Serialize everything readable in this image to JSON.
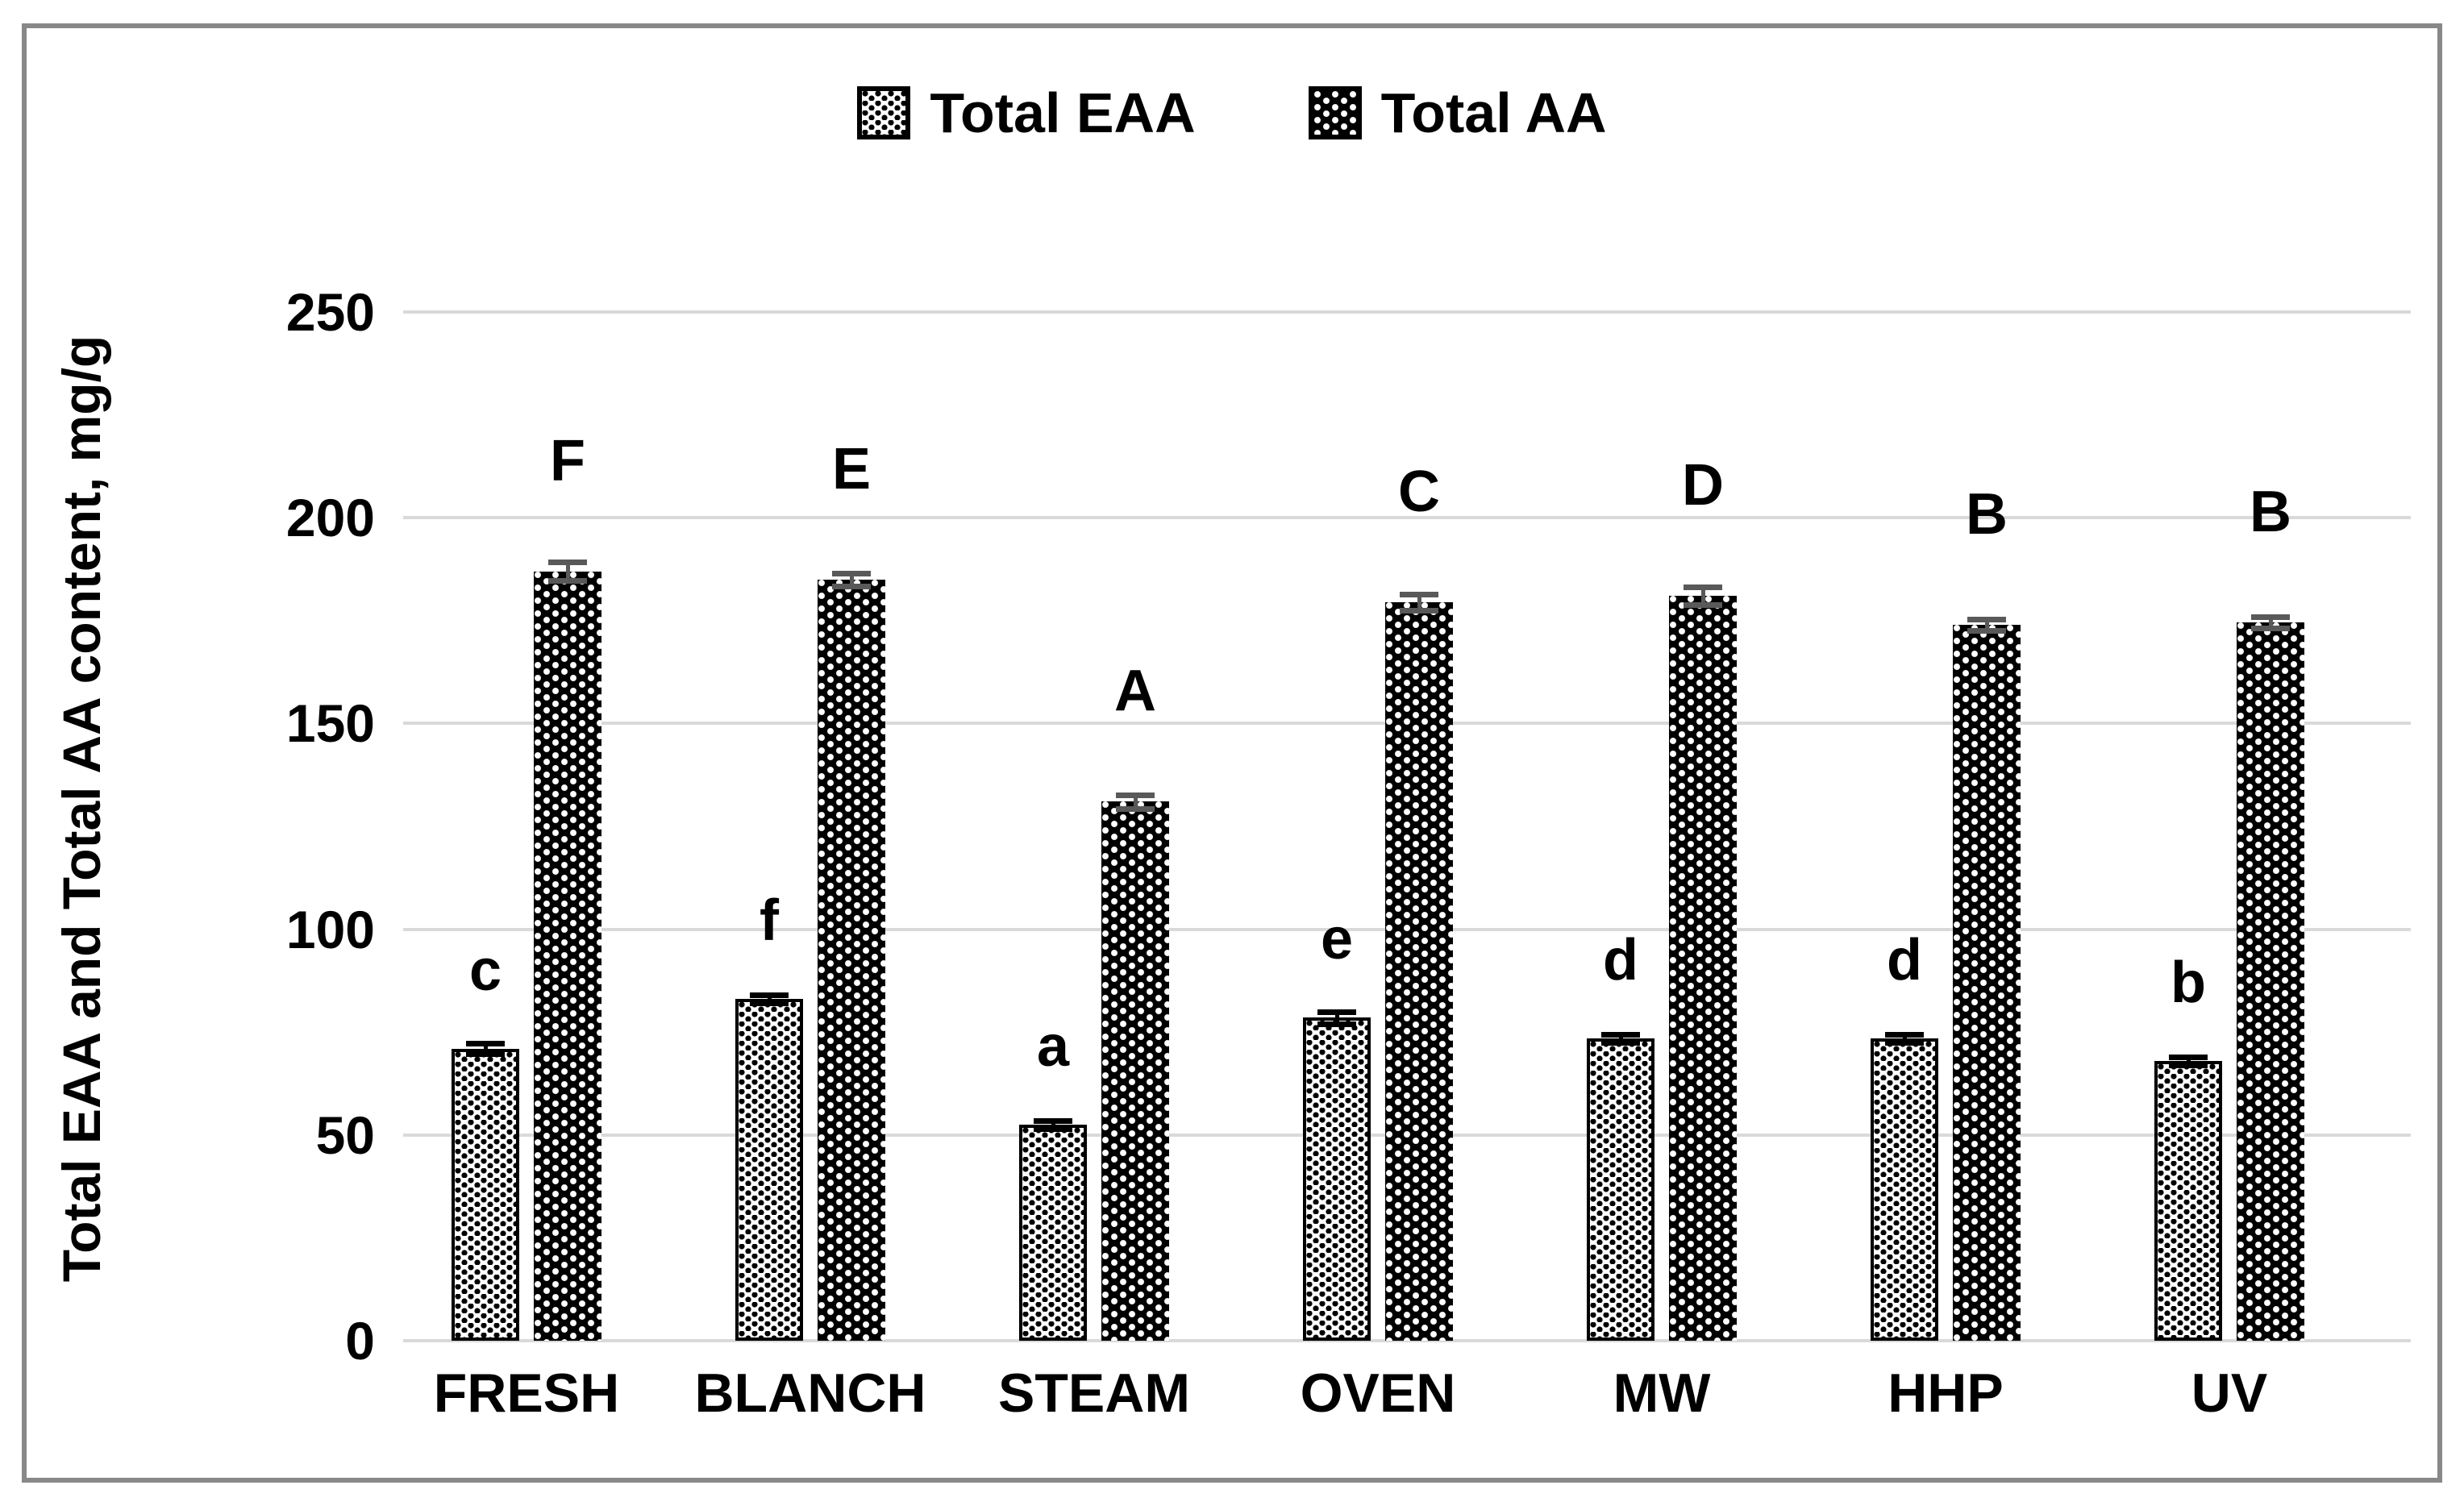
{
  "figure": {
    "background": "#ffffff",
    "border_color": "#888888"
  },
  "legend": {
    "items": [
      {
        "label": "Total EAA",
        "swatch": "black-dots-on-white"
      },
      {
        "label": "Total AA",
        "swatch": "white-dots-on-black"
      }
    ]
  },
  "chart_data": {
    "type": "bar",
    "title": "",
    "xlabel": "",
    "ylabel": "Total EAA and Total AA content, mg/g",
    "ylim": [
      0,
      250
    ],
    "yticks": [
      0,
      50,
      100,
      150,
      200,
      250
    ],
    "grid": true,
    "gridline_color": "#d9d9d9",
    "error_bar_color": "#595959",
    "legend_position": "top-center",
    "categories": [
      "FRESH",
      "BLANCH",
      "STEAM",
      "OVEN",
      "MW",
      "HHP",
      "UV"
    ],
    "series": [
      {
        "name": "Total EAA",
        "pattern": "black-dots-on-white",
        "values": [
          71,
          83,
          52.5,
          78.5,
          73.5,
          73.5,
          68
        ],
        "errors": [
          1.2,
          1.0,
          1.0,
          1.5,
          1.0,
          1.0,
          1.0
        ],
        "letters": [
          "c",
          "f",
          "a",
          "e",
          "d",
          "d",
          "b"
        ]
      },
      {
        "name": "Total AA",
        "pattern": "white-dots-on-black",
        "values": [
          187,
          185,
          131,
          179.5,
          181,
          174,
          174.5
        ],
        "errors": [
          2.3,
          1.6,
          1.7,
          2.0,
          2.2,
          1.3,
          1.4
        ],
        "letters": [
          "F",
          "E",
          "A",
          "C",
          "D",
          "B",
          "B"
        ]
      }
    ]
  }
}
